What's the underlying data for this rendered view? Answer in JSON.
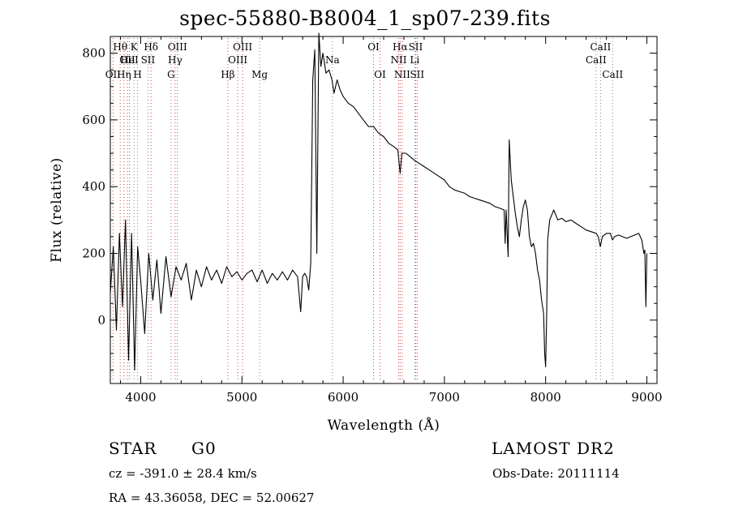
{
  "chart_data": {
    "type": "line",
    "title": "spec-55880-B8004_1_sp07-239.fits",
    "xlabel": "Wavelength (Å)",
    "ylabel": "Flux (relative)",
    "xlim": [
      3700,
      9100
    ],
    "ylim": [
      -190,
      850
    ],
    "x_ticks": [
      4000,
      5000,
      6000,
      7000,
      8000,
      9000
    ],
    "y_ticks": [
      0,
      200,
      400,
      600,
      800
    ],
    "grid": false,
    "line_color": "#000000",
    "marker_color": "#ff0000",
    "series": [
      {
        "x": [
          3700,
          3730,
          3760,
          3790,
          3820,
          3850,
          3880,
          3910,
          3940,
          3970,
          4000,
          4040,
          4080,
          4120,
          4160,
          4200,
          4250,
          4300,
          4350,
          4400,
          4450,
          4500,
          4550,
          4600,
          4650,
          4700,
          4750,
          4800,
          4850,
          4900,
          4950,
          5000,
          5050,
          5100,
          5150,
          5200,
          5250,
          5300,
          5350,
          5400,
          5450,
          5500,
          5550,
          5580,
          5600,
          5620,
          5640,
          5660,
          5680,
          5700,
          5720,
          5740,
          5760,
          5780,
          5800,
          5830,
          5860,
          5890,
          5910,
          5940,
          5970,
          6000,
          6050,
          6100,
          6150,
          6200,
          6250,
          6300,
          6350,
          6400,
          6450,
          6500,
          6540,
          6563,
          6580,
          6620,
          6660,
          6700,
          6750,
          6800,
          6850,
          6900,
          6950,
          7000,
          7050,
          7100,
          7150,
          7200,
          7250,
          7300,
          7350,
          7400,
          7450,
          7500,
          7550,
          7590,
          7600,
          7610,
          7630,
          7640,
          7660,
          7680,
          7700,
          7720,
          7740,
          7760,
          7780,
          7800,
          7820,
          7840,
          7860,
          7880,
          7900,
          7920,
          7940,
          7960,
          7980,
          7990,
          8000,
          8010,
          8020,
          8040,
          8080,
          8120,
          8160,
          8200,
          8250,
          8300,
          8350,
          8400,
          8450,
          8500,
          8520,
          8540,
          8560,
          8600,
          8640,
          8660,
          8680,
          8720,
          8760,
          8800,
          8840,
          8880,
          8920,
          8950,
          8970,
          8980,
          8990,
          9000
        ],
        "values": [
          80,
          220,
          -30,
          260,
          40,
          300,
          -120,
          260,
          -150,
          220,
          120,
          -40,
          200,
          60,
          180,
          20,
          190,
          70,
          160,
          120,
          170,
          60,
          150,
          100,
          160,
          120,
          150,
          110,
          160,
          130,
          145,
          120,
          140,
          150,
          115,
          150,
          110,
          140,
          120,
          145,
          120,
          150,
          130,
          25,
          130,
          140,
          130,
          90,
          170,
          720,
          810,
          200,
          860,
          760,
          800,
          740,
          750,
          720,
          680,
          720,
          690,
          670,
          650,
          640,
          620,
          600,
          580,
          580,
          560,
          550,
          530,
          520,
          510,
          440,
          500,
          500,
          490,
          480,
          470,
          460,
          450,
          440,
          430,
          420,
          400,
          390,
          385,
          380,
          370,
          365,
          360,
          355,
          350,
          340,
          335,
          330,
          230,
          330,
          190,
          540,
          420,
          370,
          320,
          280,
          250,
          300,
          340,
          360,
          330,
          250,
          220,
          230,
          200,
          150,
          120,
          60,
          20,
          -100,
          -140,
          20,
          240,
          300,
          330,
          300,
          305,
          295,
          300,
          290,
          280,
          270,
          265,
          260,
          250,
          220,
          250,
          260,
          260,
          240,
          250,
          255,
          250,
          245,
          250,
          255,
          260,
          240,
          200,
          210,
          40,
          200
        ]
      }
    ],
    "lines": [
      {
        "x": 3727,
        "label": "OII",
        "row": 2,
        "color": "#d04040"
      },
      {
        "x": 3798,
        "label": "Hθ",
        "row": 0,
        "color": "#d04040"
      },
      {
        "x": 3835,
        "label": "Hη",
        "row": 2,
        "color": "#d04040"
      },
      {
        "x": 3869,
        "label": "OII",
        "row": 1,
        "color": "#d04040"
      },
      {
        "x": 3889,
        "label": "HeI",
        "row": 1,
        "color": "#d04040"
      },
      {
        "x": 3934,
        "label": "K",
        "row": 0,
        "color": "#808080"
      },
      {
        "x": 3969,
        "label": "H",
        "row": 2,
        "color": "#808080"
      },
      {
        "x": 4072,
        "label": "SII",
        "row": 1,
        "color": "#808080"
      },
      {
        "x": 4102,
        "label": "Hδ",
        "row": 0,
        "color": "#d04040"
      },
      {
        "x": 4300,
        "label": "G",
        "row": 2,
        "color": "#808080"
      },
      {
        "x": 4340,
        "label": "Hγ",
        "row": 1,
        "color": "#d04040"
      },
      {
        "x": 4363,
        "label": "OIII",
        "row": 0,
        "color": "#d04040"
      },
      {
        "x": 4861,
        "label": "Hβ",
        "row": 2,
        "color": "#d04040"
      },
      {
        "x": 4959,
        "label": "OIII",
        "row": 1,
        "color": "#d04040"
      },
      {
        "x": 5007,
        "label": "OIII",
        "row": 0,
        "color": "#d04040"
      },
      {
        "x": 5175,
        "label": "Mg",
        "row": 2,
        "color": "#808080"
      },
      {
        "x": 5894,
        "label": "Na",
        "row": 1,
        "color": "#808080"
      },
      {
        "x": 6300,
        "label": "OI",
        "row": 0,
        "color": "#d04040"
      },
      {
        "x": 6364,
        "label": "OI",
        "row": 2,
        "color": "#d04040"
      },
      {
        "x": 6548,
        "label": "NII",
        "row": 1,
        "color": "#d04040"
      },
      {
        "x": 6563,
        "label": "Hα",
        "row": 0,
        "color": "#d04040"
      },
      {
        "x": 6583,
        "label": "NII",
        "row": 2,
        "color": "#d04040"
      },
      {
        "x": 6707,
        "label": "Li",
        "row": 1,
        "color": "#808080"
      },
      {
        "x": 6716,
        "label": "SII",
        "row": 0,
        "color": "#d04040"
      },
      {
        "x": 6731,
        "label": "SII",
        "row": 2,
        "color": "#d04040"
      },
      {
        "x": 8498,
        "label": "CaII",
        "row": 1,
        "color": "#808080"
      },
      {
        "x": 8542,
        "label": "CaII",
        "row": 0,
        "color": "#808080"
      },
      {
        "x": 8662,
        "label": "CaII",
        "row": 2,
        "color": "#808080"
      }
    ]
  },
  "info": {
    "object_class": "STAR",
    "subclass": "G0",
    "survey": "LAMOST DR2",
    "cz": "cz = -391.0 ± 28.4 km/s",
    "obs_date": "Obs-Date: 20111114",
    "coords": "RA =  43.36058, DEC =  52.00627"
  }
}
